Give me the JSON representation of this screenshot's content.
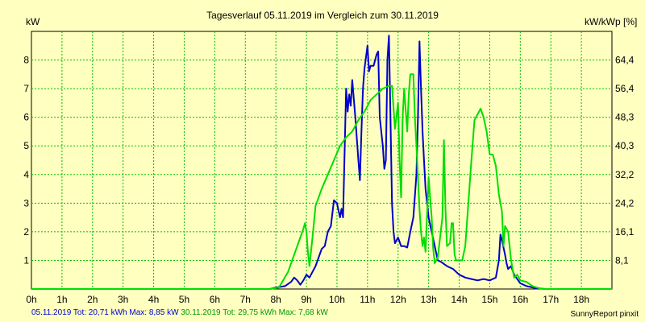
{
  "chart_data": {
    "type": "line",
    "title": "Tagesverlauf 05.11.2019 im Vergleich zum 30.11.2019",
    "ylabel_left": "kW",
    "ylabel_right": "kW/kWp [%]",
    "x_range": [
      0,
      19
    ],
    "y_range": [
      0,
      9
    ],
    "x_ticks": [
      "0h",
      "1h",
      "2h",
      "3h",
      "4h",
      "5h",
      "6h",
      "7h",
      "8h",
      "9h",
      "10h",
      "11h",
      "12h",
      "13h",
      "14h",
      "15h",
      "16h",
      "17h",
      "18h"
    ],
    "y_ticks_left": [
      {
        "value": 1,
        "label": "1"
      },
      {
        "value": 2,
        "label": "2"
      },
      {
        "value": 3,
        "label": "3"
      },
      {
        "value": 4,
        "label": "4"
      },
      {
        "value": 5,
        "label": "5"
      },
      {
        "value": 6,
        "label": "6"
      },
      {
        "value": 7,
        "label": "7"
      },
      {
        "value": 8,
        "label": "8"
      }
    ],
    "y_ticks_right": [
      {
        "value": 1,
        "label": "8,1"
      },
      {
        "value": 2,
        "label": "16,1"
      },
      {
        "value": 3,
        "label": "24,2"
      },
      {
        "value": 4,
        "label": "32,2"
      },
      {
        "value": 5,
        "label": "40,3"
      },
      {
        "value": 6,
        "label": "48,3"
      },
      {
        "value": 7,
        "label": "56,4"
      },
      {
        "value": 8,
        "label": "64,4"
      }
    ],
    "grid": true,
    "series": [
      {
        "name": "05.11.2019",
        "color": "#0000cc",
        "points": [
          [
            0,
            0
          ],
          [
            7.8,
            0
          ],
          [
            8.0,
            0.05
          ],
          [
            8.3,
            0.1
          ],
          [
            8.5,
            0.25
          ],
          [
            8.6,
            0.4
          ],
          [
            8.7,
            0.3
          ],
          [
            8.8,
            0.15
          ],
          [
            8.9,
            0.3
          ],
          [
            9.0,
            0.5
          ],
          [
            9.1,
            0.4
          ],
          [
            9.2,
            0.6
          ],
          [
            9.3,
            0.8
          ],
          [
            9.4,
            1.1
          ],
          [
            9.5,
            1.4
          ],
          [
            9.6,
            1.5
          ],
          [
            9.7,
            2.0
          ],
          [
            9.8,
            2.2
          ],
          [
            9.9,
            3.1
          ],
          [
            10.0,
            3.0
          ],
          [
            10.1,
            2.5
          ],
          [
            10.15,
            2.8
          ],
          [
            10.2,
            2.5
          ],
          [
            10.3,
            7.0
          ],
          [
            10.35,
            6.2
          ],
          [
            10.4,
            6.8
          ],
          [
            10.45,
            6.4
          ],
          [
            10.5,
            7.3
          ],
          [
            10.6,
            6.0
          ],
          [
            10.7,
            4.5
          ],
          [
            10.75,
            3.8
          ],
          [
            10.8,
            5.5
          ],
          [
            10.85,
            7.0
          ],
          [
            10.9,
            7.7
          ],
          [
            11.0,
            8.5
          ],
          [
            11.05,
            7.6
          ],
          [
            11.1,
            7.8
          ],
          [
            11.2,
            7.8
          ],
          [
            11.3,
            8.2
          ],
          [
            11.35,
            8.3
          ],
          [
            11.4,
            6.0
          ],
          [
            11.5,
            5.0
          ],
          [
            11.55,
            4.2
          ],
          [
            11.6,
            4.5
          ],
          [
            11.65,
            8.0
          ],
          [
            11.7,
            8.85
          ],
          [
            11.75,
            6.0
          ],
          [
            11.8,
            3.0
          ],
          [
            11.85,
            2.0
          ],
          [
            11.9,
            1.6
          ],
          [
            12.0,
            1.8
          ],
          [
            12.1,
            1.5
          ],
          [
            12.2,
            1.5
          ],
          [
            12.3,
            1.45
          ],
          [
            12.4,
            2.0
          ],
          [
            12.5,
            2.5
          ],
          [
            12.6,
            4.0
          ],
          [
            12.65,
            6.0
          ],
          [
            12.7,
            8.65
          ],
          [
            12.75,
            7.0
          ],
          [
            12.8,
            5.5
          ],
          [
            12.85,
            4.5
          ],
          [
            12.9,
            3.5
          ],
          [
            13.0,
            2.5
          ],
          [
            13.1,
            2.0
          ],
          [
            13.2,
            1.5
          ],
          [
            13.3,
            1.0
          ],
          [
            13.4,
            0.95
          ],
          [
            13.6,
            0.8
          ],
          [
            13.8,
            0.7
          ],
          [
            14.0,
            0.5
          ],
          [
            14.2,
            0.4
          ],
          [
            14.4,
            0.35
          ],
          [
            14.6,
            0.3
          ],
          [
            14.8,
            0.35
          ],
          [
            15.0,
            0.3
          ],
          [
            15.2,
            0.4
          ],
          [
            15.3,
            1.0
          ],
          [
            15.35,
            1.9
          ],
          [
            15.4,
            1.7
          ],
          [
            15.5,
            1.2
          ],
          [
            15.55,
            0.9
          ],
          [
            15.6,
            0.7
          ],
          [
            15.7,
            0.8
          ],
          [
            15.8,
            0.5
          ],
          [
            16.0,
            0.2
          ],
          [
            16.2,
            0.1
          ],
          [
            16.5,
            0.03
          ],
          [
            16.8,
            0
          ],
          [
            19,
            0
          ]
        ]
      },
      {
        "name": "30.11.2019",
        "color": "#00dd00",
        "points": [
          [
            0,
            0
          ],
          [
            7.8,
            0
          ],
          [
            8.1,
            0.05
          ],
          [
            8.4,
            0.6
          ],
          [
            8.6,
            1.2
          ],
          [
            8.8,
            1.8
          ],
          [
            8.9,
            2.1
          ],
          [
            8.95,
            2.3
          ],
          [
            9.0,
            2.0
          ],
          [
            9.05,
            1.3
          ],
          [
            9.1,
            0.8
          ],
          [
            9.2,
            1.8
          ],
          [
            9.3,
            2.9
          ],
          [
            9.5,
            3.5
          ],
          [
            9.7,
            4.0
          ],
          [
            9.9,
            4.5
          ],
          [
            10.1,
            5.0
          ],
          [
            10.3,
            5.3
          ],
          [
            10.5,
            5.5
          ],
          [
            10.7,
            5.9
          ],
          [
            10.9,
            6.2
          ],
          [
            11.1,
            6.6
          ],
          [
            11.3,
            6.8
          ],
          [
            11.5,
            7.0
          ],
          [
            11.7,
            7.1
          ],
          [
            11.8,
            7.1
          ],
          [
            11.9,
            5.6
          ],
          [
            12.0,
            6.5
          ],
          [
            12.05,
            4.5
          ],
          [
            12.1,
            3.2
          ],
          [
            12.15,
            6.0
          ],
          [
            12.2,
            7.0
          ],
          [
            12.3,
            5.5
          ],
          [
            12.35,
            6.8
          ],
          [
            12.4,
            7.5
          ],
          [
            12.5,
            7.5
          ],
          [
            12.55,
            6.0
          ],
          [
            12.6,
            5.0
          ],
          [
            12.7,
            2.8
          ],
          [
            12.75,
            2.0
          ],
          [
            12.8,
            1.5
          ],
          [
            12.85,
            1.8
          ],
          [
            12.9,
            1.3
          ],
          [
            13.0,
            3.9
          ],
          [
            13.1,
            2.5
          ],
          [
            13.15,
            1.4
          ],
          [
            13.2,
            0.9
          ],
          [
            13.3,
            1.1
          ],
          [
            13.45,
            2.5
          ],
          [
            13.5,
            5.2
          ],
          [
            13.55,
            2.8
          ],
          [
            13.6,
            1.5
          ],
          [
            13.7,
            1.6
          ],
          [
            13.75,
            2.3
          ],
          [
            13.8,
            2.3
          ],
          [
            13.85,
            1.2
          ],
          [
            13.9,
            1.0
          ],
          [
            14.0,
            1.0
          ],
          [
            14.1,
            1.0
          ],
          [
            14.2,
            1.5
          ],
          [
            14.3,
            3.0
          ],
          [
            14.4,
            4.5
          ],
          [
            14.5,
            5.9
          ],
          [
            14.6,
            6.1
          ],
          [
            14.7,
            6.3
          ],
          [
            14.8,
            6.0
          ],
          [
            14.9,
            5.5
          ],
          [
            15.0,
            4.7
          ],
          [
            15.1,
            4.7
          ],
          [
            15.2,
            4.3
          ],
          [
            15.3,
            3.3
          ],
          [
            15.4,
            2.7
          ],
          [
            15.45,
            1.5
          ],
          [
            15.5,
            2.2
          ],
          [
            15.6,
            2.0
          ],
          [
            15.7,
            1.0
          ],
          [
            15.8,
            0.4
          ],
          [
            15.9,
            0.5
          ],
          [
            16.0,
            0.3
          ],
          [
            16.2,
            0.25
          ],
          [
            16.4,
            0.1
          ],
          [
            16.6,
            0.03
          ],
          [
            16.8,
            0
          ],
          [
            19,
            0
          ]
        ]
      }
    ]
  },
  "footer": {
    "blue_text": "05.11.2019 Tot: 20,71 kWh Max: 8,85 kW",
    "green_text": "30.11.2019 Tot: 29,75 kWh Max: 7,68 kW",
    "credit": "SunnyReport pinxit"
  }
}
